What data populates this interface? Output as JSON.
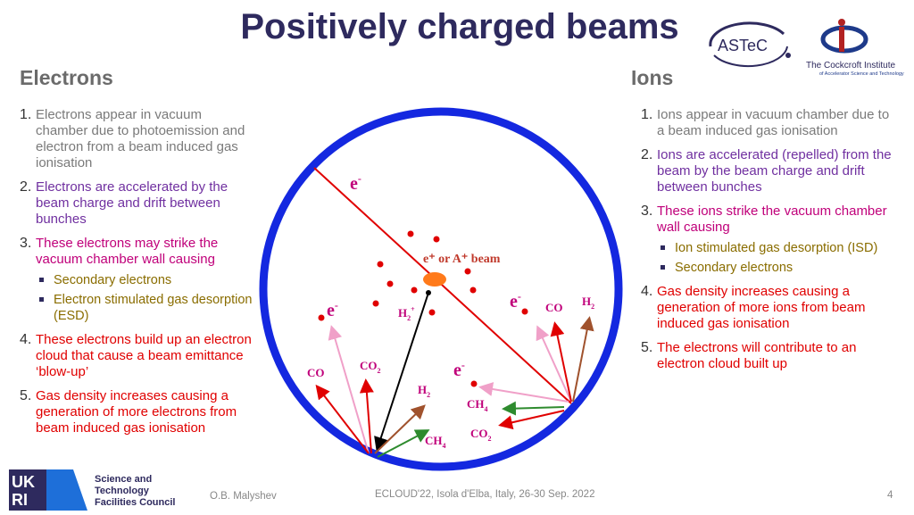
{
  "title": "Positively charged beams",
  "electrons": {
    "heading": "Electrons",
    "items": [
      {
        "num": "1.",
        "text": "Electrons appear in vacuum chamber due to photoemission and  electron from a beam induced gas ionisation",
        "color": "#7a7a7a"
      },
      {
        "num": "2.",
        "text": "Electrons are accelerated by the beam charge and drift between bunches",
        "color": "#7030a0"
      },
      {
        "num": "3.",
        "text": "These electrons may strike the vacuum chamber wall causing",
        "color": "#c0007a",
        "sub": [
          "Secondary electrons",
          "Electron stimulated gas desorption (ESD)"
        ]
      },
      {
        "num": "4.",
        "text": "These electrons build up an electron cloud that cause a beam emittance ‘blow-up’",
        "color": "#e00000"
      },
      {
        "num": "5.",
        "text": "Gas density increases causing a generation of more electrons from beam induced gas ionisation",
        "color": "#e00000"
      }
    ]
  },
  "ions": {
    "heading": "Ions",
    "items": [
      {
        "num": "1.",
        "text": "Ions appear in vacuum chamber due to a beam induced gas ionisation",
        "color": "#7a7a7a"
      },
      {
        "num": "2.",
        "text": "Ions are accelerated (repelled) from the beam by the beam charge and drift between bunches",
        "color": "#7030a0"
      },
      {
        "num": "3.",
        "text": "These ions strike the vacuum chamber wall causing",
        "color": "#c0007a",
        "sub": [
          "Ion stimulated gas desorption (ISD)",
          "Secondary electrons"
        ]
      },
      {
        "num": "4.",
        "text": "Gas density increases causing a generation of more ions from beam induced gas ionisation",
        "color": "#e00000"
      },
      {
        "num": "5.",
        "text": "The electrons will contribute to an electron cloud built up",
        "color": "#e00000"
      }
    ]
  },
  "diagram": {
    "beam_label": "e⁺ or A⁺ beam",
    "e_label": "e",
    "e_sup": "-",
    "minus": "-",
    "h2plus": "H",
    "h2plus_sub": "2",
    "h2plus_sup": "+",
    "co": "CO",
    "co2": "CO",
    "co2_sub": "2",
    "h2": "H",
    "h2_sub": "2",
    "ch4": "CH",
    "ch4_sub": "4",
    "colors": {
      "chamber": "#1428e0",
      "beam": "#ff7a1a",
      "electron": "#e00000",
      "gas": "#c0007a"
    }
  },
  "logos": {
    "astec": "ASTeC",
    "cockcroft_name": "The Cockcroft Institute",
    "cockcroft_sub": "of Accelerator Science and Technology",
    "ukri": "UKRI",
    "stfc_line1": "Science and",
    "stfc_line2": "Technology",
    "stfc_line3": "Facilities Council"
  },
  "footer": {
    "author": "O.B. Malyshev",
    "conference": "ECLOUD'22, Isola d'Elba, Italy, 26-30 Sep. 2022",
    "page": "4"
  }
}
